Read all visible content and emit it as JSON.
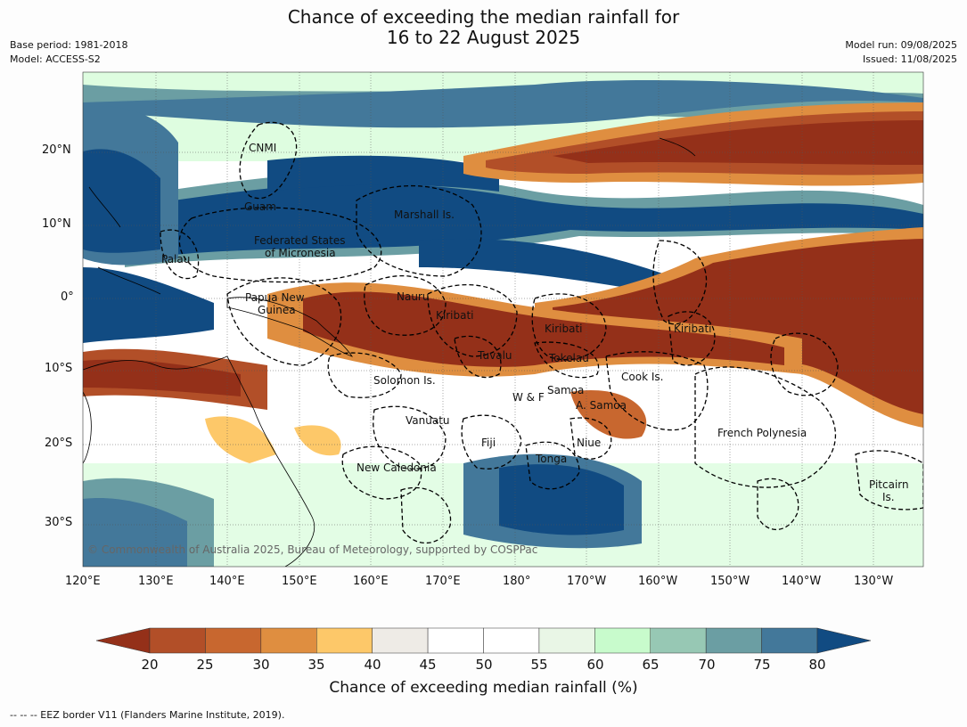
{
  "header": {
    "title_line1": "Chance of exceeding the median rainfall for",
    "title_line2": "16 to 22 August 2025",
    "base_period": "Base period: 1981-2018",
    "model": "Model: ACCESS-S2",
    "model_run": "Model run: 09/08/2025",
    "issued": "Issued: 11/08/2025"
  },
  "map": {
    "lon_labels": [
      "120°E",
      "130°E",
      "140°E",
      "150°E",
      "160°E",
      "170°E",
      "180°",
      "170°W",
      "160°W",
      "150°W",
      "140°W",
      "130°W"
    ],
    "lat_labels": [
      "20°N",
      "10°N",
      "0°",
      "10°S",
      "20°S",
      "30°S"
    ],
    "regions": [
      {
        "id": "cnmi",
        "text": "CNMI"
      },
      {
        "id": "guam",
        "text": "Guam"
      },
      {
        "id": "marshall",
        "text": "Marshall Is."
      },
      {
        "id": "fsm1",
        "text": "Federated States"
      },
      {
        "id": "fsm2",
        "text": "of Micronesia"
      },
      {
        "id": "palau",
        "text": "Palau"
      },
      {
        "id": "png1",
        "text": "Papua New"
      },
      {
        "id": "png2",
        "text": "Guinea"
      },
      {
        "id": "nauru",
        "text": "Nauru"
      },
      {
        "id": "kiribati_w",
        "text": "Kiribati"
      },
      {
        "id": "kiribati_c",
        "text": "Kiribati"
      },
      {
        "id": "kiribati_e",
        "text": "Kiribati"
      },
      {
        "id": "tuvalu",
        "text": "Tuvalu"
      },
      {
        "id": "tokelau",
        "text": "Tokelau"
      },
      {
        "id": "solomon",
        "text": "Solomon Is."
      },
      {
        "id": "cook",
        "text": "Cook Is."
      },
      {
        "id": "samoa",
        "text": "Samoa"
      },
      {
        "id": "wf",
        "text": "W & F"
      },
      {
        "id": "asamoa",
        "text": "A. Samoa"
      },
      {
        "id": "vanuatu",
        "text": "Vanuatu"
      },
      {
        "id": "fiji",
        "text": "Fiji"
      },
      {
        "id": "niue",
        "text": "Niue"
      },
      {
        "id": "fp",
        "text": "French Polynesia"
      },
      {
        "id": "tonga",
        "text": "Tonga"
      },
      {
        "id": "newcal",
        "text": "New Caledonia"
      },
      {
        "id": "pitcairn1",
        "text": "Pitcairn"
      },
      {
        "id": "pitcairn2",
        "text": "Is."
      }
    ],
    "copyright": "© Commonwealth of Australia 2025, Bureau of Meteorology, supported by COSPPac"
  },
  "colorbar": {
    "ticks": [
      "20",
      "25",
      "30",
      "35",
      "40",
      "45",
      "50",
      "55",
      "60",
      "65",
      "70",
      "75",
      "80"
    ],
    "colors": [
      "#943019",
      "#b24f28",
      "#c8672f",
      "#df8e40",
      "#fdc869",
      "#eeebe6",
      "#ffffff",
      "#ffffff",
      "#e9f6e6",
      "#c8fbcc",
      "#97c8b4",
      "#6b9ea3",
      "#43789a",
      "#114b82"
    ],
    "label": "Chance of exceeding median rainfall (%)"
  },
  "footer": {
    "legend": "-- -- -- EEZ border V11 (Flanders Marine Institute, 2019)."
  }
}
